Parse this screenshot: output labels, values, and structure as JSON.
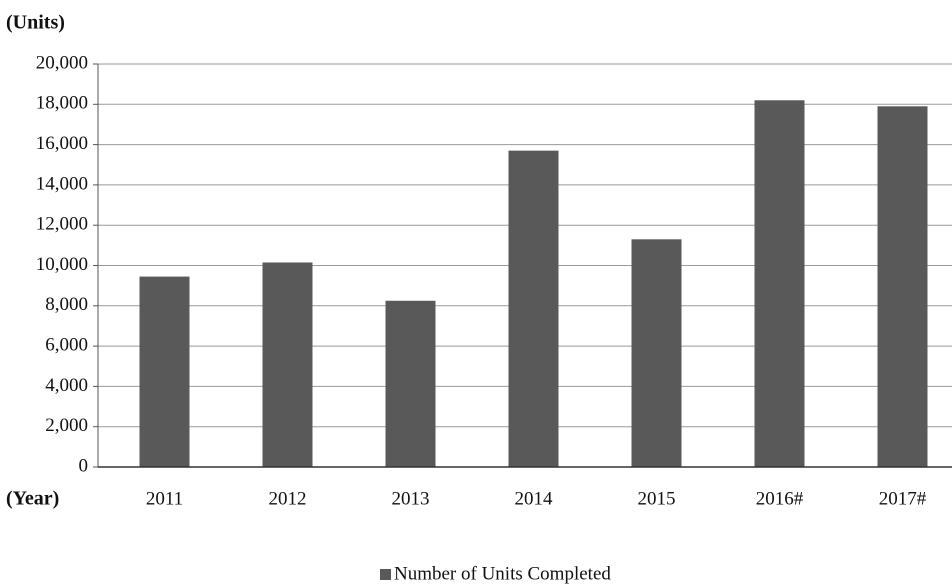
{
  "chart_data": {
    "type": "bar",
    "y_label": "(Units)",
    "x_label": "(Year)",
    "categories": [
      "2011",
      "2012",
      "2013",
      "2014",
      "2015",
      "2016#",
      "2017#"
    ],
    "series": [
      {
        "name": "Number of Units Completed",
        "color": "#595959",
        "values": [
          9450,
          10150,
          8250,
          15700,
          11300,
          18200,
          17900
        ]
      }
    ],
    "ylim": [
      0,
      20000
    ],
    "yticks": [
      {
        "value": 0,
        "label": "0"
      },
      {
        "value": 2000,
        "label": "2,000"
      },
      {
        "value": 4000,
        "label": "4,000"
      },
      {
        "value": 6000,
        "label": "6,000"
      },
      {
        "value": 8000,
        "label": "8,000"
      },
      {
        "value": 10000,
        "label": "10,000"
      },
      {
        "value": 12000,
        "label": "12,000"
      },
      {
        "value": 14000,
        "label": "14,000"
      },
      {
        "value": 16000,
        "label": "16,000"
      },
      {
        "value": 18000,
        "label": "18,000"
      },
      {
        "value": 20000,
        "label": "20,000"
      }
    ],
    "grid": true,
    "legend": "bottom"
  }
}
